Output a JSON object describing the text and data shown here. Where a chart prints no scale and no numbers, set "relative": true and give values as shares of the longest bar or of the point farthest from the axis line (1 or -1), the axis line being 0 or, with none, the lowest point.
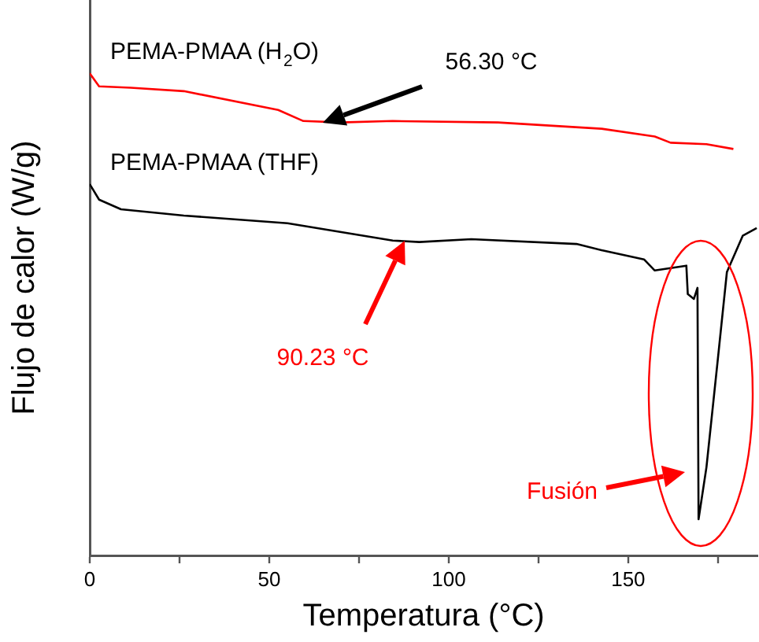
{
  "chart_data": {
    "type": "line",
    "xlabel": "Temperatura (°C)",
    "ylabel": "Flujo de calor (W/g)",
    "relative": true,
    "tick_labels": "x",
    "grid": false,
    "legend": "top left",
    "marker": "none",
    "line_style": "solid",
    "xlim": [
      0,
      186
    ],
    "xticks": [
      0,
      {
        "value": 25,
        "label": null
      },
      50,
      {
        "value": 75,
        "label": null
      },
      100,
      {
        "value": 125,
        "label": null
      },
      150,
      {
        "value": 175,
        "label": null
      }
    ],
    "series": [
      {
        "name": "PEMA-PMAA (H$_{2}$O)",
        "color": "#ff0000",
        "x": [
          0,
          2.6,
          11.4,
          26.2,
          52.5,
          59.5,
          70,
          84.4,
          113.7,
          142.6,
          157.4,
          161.8,
          171.8,
          179.3
        ],
        "values": [
          1,
          0.973,
          0.97,
          0.963,
          0.924,
          0.901,
          0.898,
          0.901,
          0.898,
          0.885,
          0.869,
          0.856,
          0.853,
          0.843
        ]
      },
      {
        "name": "PEMA-PMAA (THF)",
        "color": "#000000",
        "x": [
          0,
          2.6,
          8.7,
          26.2,
          55.1,
          84.4,
          91.8,
          106.3,
          135.6,
          142.6,
          154.4,
          157.4,
          166.2,
          166.6,
          168.3,
          169.3,
          169.6,
          171.8,
          174.9,
          177.5,
          181.9,
          185.8
        ],
        "values": [
          0.77,
          0.738,
          0.718,
          0.705,
          0.689,
          0.653,
          0.65,
          0.656,
          0.646,
          0.633,
          0.614,
          0.591,
          0.601,
          0.542,
          0.532,
          0.555,
          0.075,
          0.183,
          0.402,
          0.588,
          0.663,
          0.679
        ]
      }
    ],
    "annotations": [
      "56.30 °C",
      "90.23 °C",
      "Fusión"
    ]
  }
}
